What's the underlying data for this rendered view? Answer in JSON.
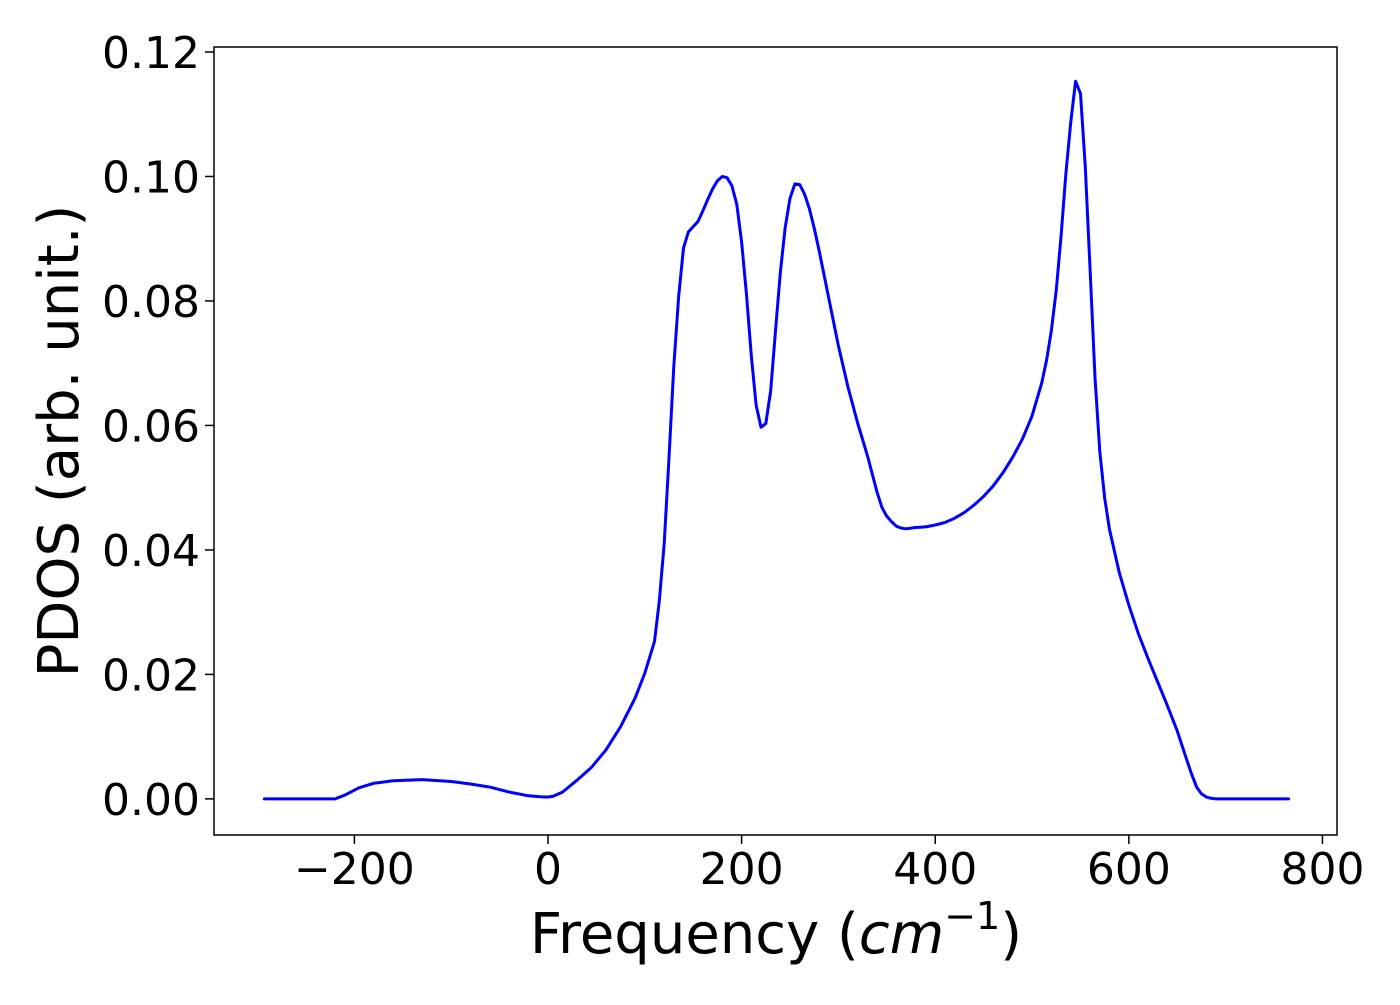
{
  "chart_data": {
    "type": "line",
    "title": "",
    "xlabel": "Frequency (",
    "xlabel_math_base": "cm",
    "xlabel_math_sup": "−1",
    "xlabel_suffix": ")",
    "ylabel": "PDOS (arb. unit.)",
    "xlim": [
      -345,
      815
    ],
    "ylim": [
      -0.0058,
      0.1208
    ],
    "x_ticks": [
      -200,
      0,
      200,
      400,
      600,
      800
    ],
    "x_tick_labels": [
      "−200",
      "0",
      "200",
      "400",
      "600",
      "800"
    ],
    "y_ticks": [
      0.0,
      0.02,
      0.04,
      0.06,
      0.08,
      0.1,
      0.12
    ],
    "y_tick_labels": [
      "0.00",
      "0.02",
      "0.04",
      "0.06",
      "0.08",
      "0.10",
      "0.12"
    ],
    "grid": false,
    "legend": "none",
    "series": [
      {
        "color": "#0000ff",
        "x": [
          -293,
          -250,
          -220,
          -210,
          -195,
          -180,
          -160,
          -130,
          -100,
          -80,
          -60,
          -40,
          -20,
          -5,
          0,
          5,
          15,
          30,
          45,
          60,
          75,
          90,
          100,
          110,
          115,
          120,
          125,
          130,
          135,
          140,
          145,
          155,
          160,
          165,
          170,
          175,
          180,
          185,
          190,
          195,
          200,
          205,
          210,
          215,
          220,
          225,
          230,
          235,
          240,
          245,
          250,
          255,
          260,
          265,
          270,
          275,
          280,
          285,
          290,
          300,
          310,
          320,
          330,
          340,
          345,
          350,
          355,
          360,
          365,
          370,
          375,
          380,
          390,
          400,
          410,
          420,
          430,
          440,
          450,
          460,
          470,
          480,
          490,
          500,
          510,
          515,
          520,
          525,
          530,
          535,
          540,
          545,
          550,
          555,
          560,
          565,
          570,
          575,
          580,
          590,
          600,
          610,
          620,
          630,
          640,
          650,
          660,
          665,
          670,
          675,
          680,
          685,
          690,
          700,
          720,
          765
        ],
        "values": [
          0.0,
          0.0,
          0.0,
          0.0006,
          0.0018,
          0.0025,
          0.0029,
          0.0031,
          0.0028,
          0.0024,
          0.0019,
          0.0011,
          0.0005,
          0.0003,
          0.0003,
          0.0004,
          0.0011,
          0.003,
          0.0051,
          0.0079,
          0.0116,
          0.0162,
          0.0202,
          0.0253,
          0.0318,
          0.041,
          0.0548,
          0.0695,
          0.0808,
          0.0885,
          0.0911,
          0.0928,
          0.0945,
          0.0963,
          0.098,
          0.0993,
          0.1,
          0.0998,
          0.0985,
          0.0955,
          0.0895,
          0.081,
          0.0712,
          0.0633,
          0.0597,
          0.0603,
          0.0656,
          0.0752,
          0.0845,
          0.0918,
          0.0965,
          0.0988,
          0.0987,
          0.0972,
          0.0948,
          0.0917,
          0.0881,
          0.0843,
          0.0805,
          0.0728,
          0.0661,
          0.0603,
          0.0551,
          0.0492,
          0.0468,
          0.0454,
          0.0445,
          0.0438,
          0.0435,
          0.0434,
          0.0435,
          0.0436,
          0.0437,
          0.044,
          0.0444,
          0.0451,
          0.046,
          0.0472,
          0.0486,
          0.0503,
          0.0524,
          0.0549,
          0.0578,
          0.0615,
          0.0668,
          0.0705,
          0.0753,
          0.0818,
          0.0905,
          0.1005,
          0.1088,
          0.1153,
          0.1133,
          0.1015,
          0.085,
          0.0677,
          0.0558,
          0.0483,
          0.0433,
          0.0364,
          0.0311,
          0.0265,
          0.0225,
          0.0187,
          0.0149,
          0.0109,
          0.0062,
          0.0039,
          0.0019,
          0.0008,
          0.0003,
          0.0001,
          0.0,
          0.0,
          0.0,
          0.0
        ]
      }
    ]
  }
}
